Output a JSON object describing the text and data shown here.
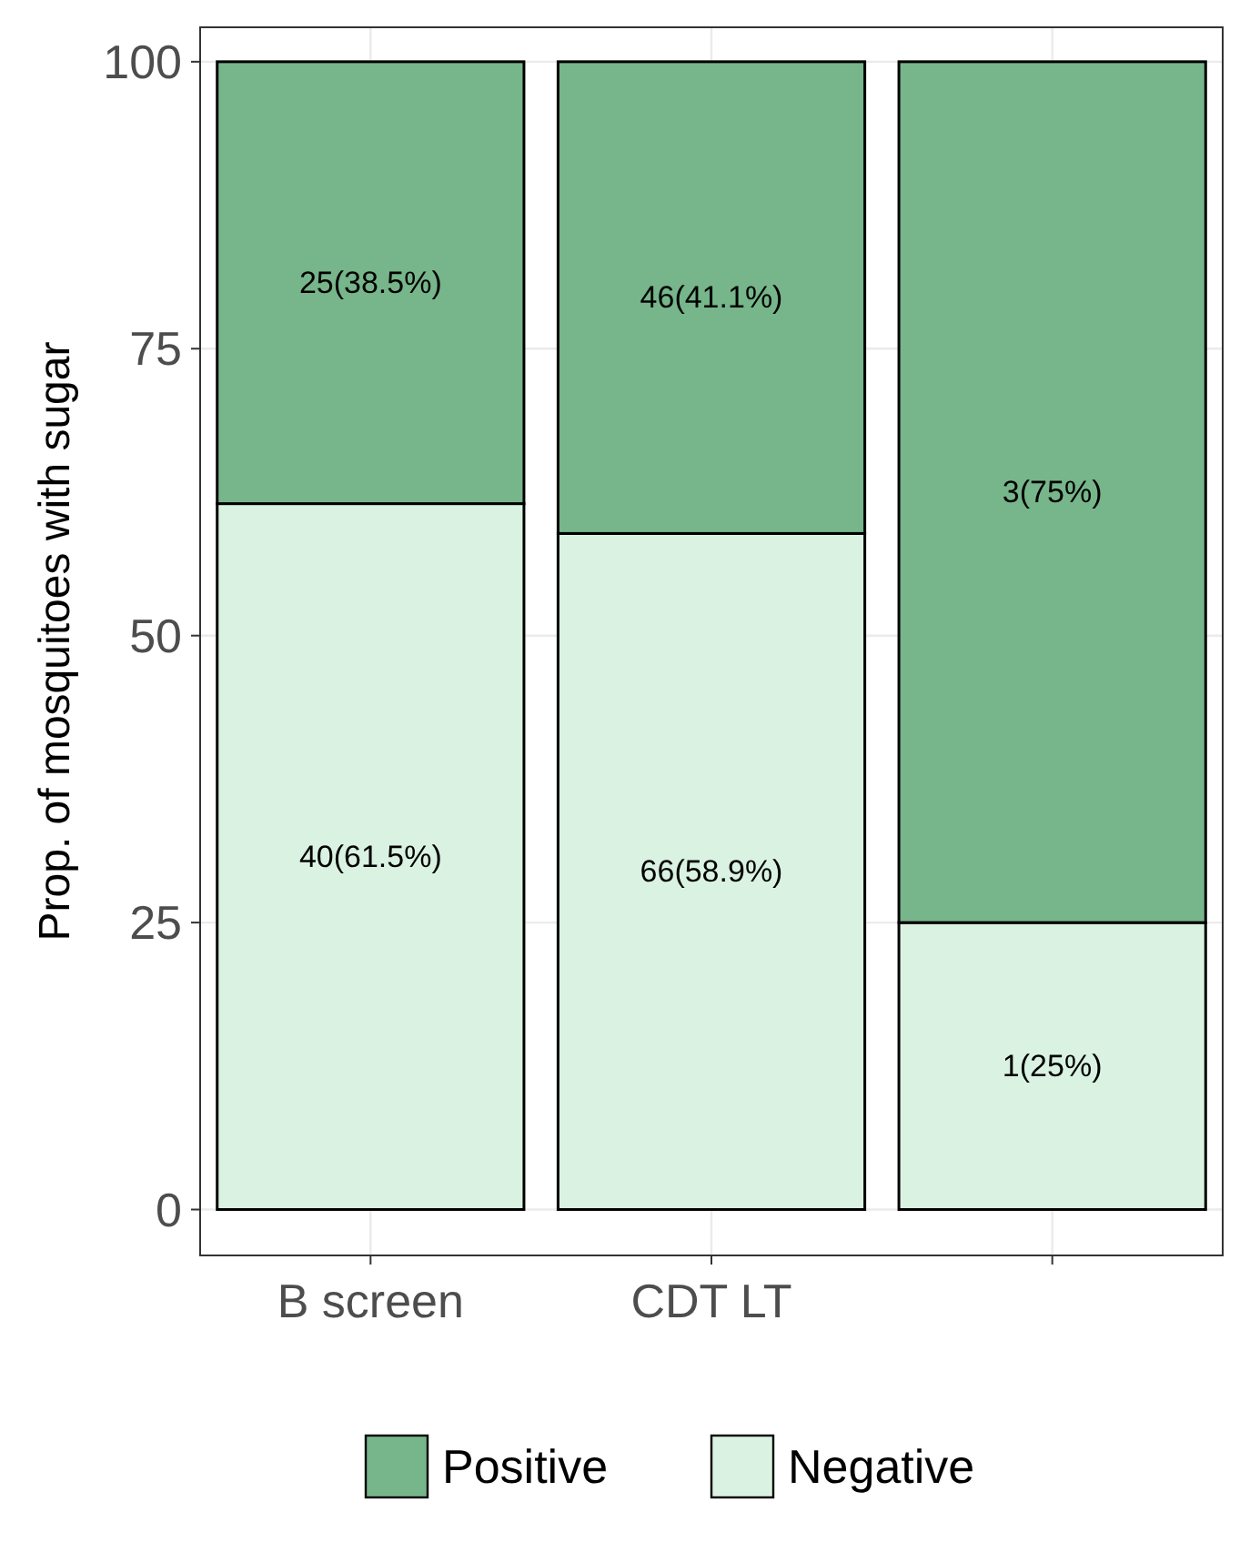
{
  "chart_data": {
    "type": "bar",
    "stacked": true,
    "ylabel": "Prop. of mosquitoes with sugar",
    "categories": [
      "B screen",
      "CDT LT",
      null
    ],
    "series": [
      {
        "name": "Negative",
        "color": "#daf2e2",
        "values": [
          61.5,
          58.9,
          25
        ],
        "value_labels": [
          "40(61.5%)",
          "66(58.9%)",
          "1(25%)"
        ]
      },
      {
        "name": "Positive",
        "color": "#77b58a",
        "values": [
          38.5,
          41.1,
          75
        ],
        "value_labels": [
          "25(38.5%)",
          "46(41.1%)",
          "3(75%)"
        ]
      }
    ],
    "ylim": [
      -4,
      103
    ],
    "yticks": [
      0,
      25,
      50,
      75,
      100
    ],
    "grid": true,
    "legend": "bottom"
  }
}
